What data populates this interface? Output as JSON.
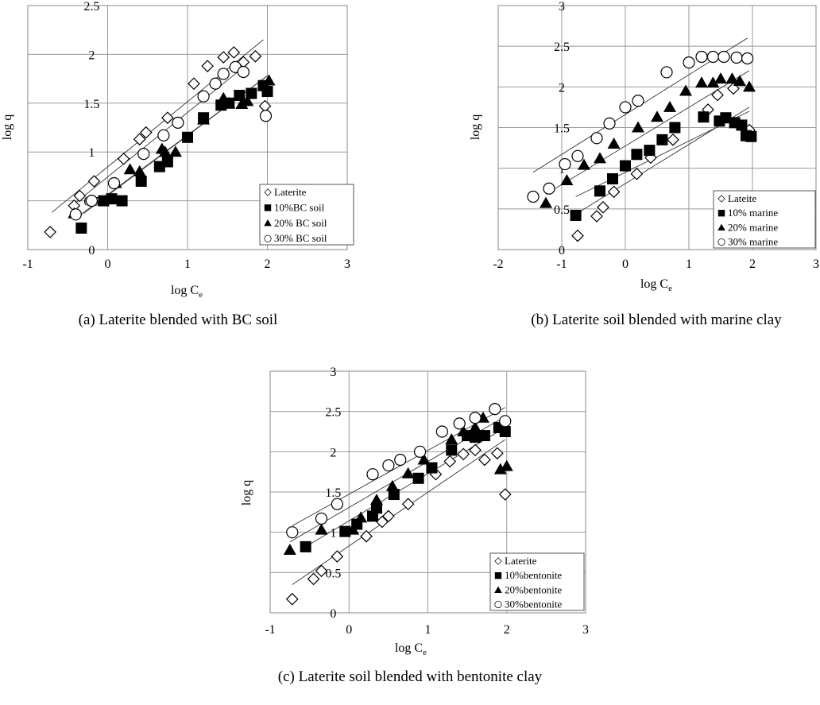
{
  "chart_data": [
    {
      "type": "scatter",
      "caption": "(a) Laterite blended with BC soil",
      "xlabel_main": "log C",
      "xlabel_sub": "e",
      "ylabel": "log q",
      "xlim": [
        -1,
        3
      ],
      "ylim": [
        0,
        2.5
      ],
      "xticks": [
        "-1",
        "0",
        "1",
        "2",
        "3"
      ],
      "yticks": [
        "0",
        "0.5",
        "1",
        "1.5",
        "2",
        "2.5"
      ],
      "ytick_values": [
        0,
        0.5,
        1,
        1.5,
        2,
        2.5
      ],
      "xgrid": [
        0,
        1,
        2
      ],
      "ygrid": [
        0.5,
        1,
        1.5,
        2
      ],
      "legend_position": "bottom-right",
      "series": [
        {
          "name": "Laterite",
          "marker": "diamond-open",
          "x": [
            -0.72,
            -0.42,
            -0.35,
            -0.17,
            0.2,
            0.4,
            0.48,
            0.75,
            1.08,
            1.25,
            1.45,
            1.58,
            1.7,
            1.85,
            1.97
          ],
          "y": [
            0.18,
            0.45,
            0.55,
            0.7,
            0.93,
            1.13,
            1.2,
            1.35,
            1.7,
            1.88,
            1.97,
            2.02,
            1.92,
            1.98,
            1.47
          ],
          "fit": [
            [
              -0.7,
              0.38
            ],
            [
              1.95,
              2.15
            ]
          ]
        },
        {
          "name": "10%BC soil",
          "marker": "square-filled",
          "x": [
            -0.33,
            -0.05,
            0.05,
            0.18,
            0.42,
            0.65,
            0.75,
            1.0,
            1.2,
            1.42,
            1.52,
            1.65,
            1.8,
            1.95,
            2.0
          ],
          "y": [
            0.22,
            0.5,
            0.52,
            0.5,
            0.7,
            0.85,
            0.9,
            1.15,
            1.35,
            1.48,
            1.5,
            1.58,
            1.6,
            1.68,
            1.62
          ],
          "fit": [
            [
              -0.3,
              0.37
            ],
            [
              2.0,
              1.78
            ]
          ]
        },
        {
          "name": "20% BC soil",
          "marker": "triangle-filled",
          "x": [
            -0.42,
            0.1,
            0.28,
            0.4,
            0.68,
            0.72,
            0.85,
            1.2,
            1.45,
            1.52,
            1.68,
            1.75,
            2.02
          ],
          "y": [
            0.37,
            0.68,
            0.82,
            0.8,
            1.03,
            1.0,
            1.0,
            1.33,
            1.55,
            1.5,
            1.49,
            1.52,
            1.73
          ],
          "fit": [
            [
              -0.4,
              0.32
            ],
            [
              2.0,
              1.78
            ]
          ]
        },
        {
          "name": "30% BC soil",
          "marker": "circle-open",
          "x": [
            -0.4,
            -0.2,
            0.08,
            0.45,
            0.7,
            0.88,
            1.2,
            1.35,
            1.45,
            1.6,
            1.7,
            1.98
          ],
          "y": [
            0.36,
            0.5,
            0.68,
            0.98,
            1.17,
            1.3,
            1.57,
            1.7,
            1.8,
            1.87,
            1.82,
            1.37
          ],
          "fit": [
            [
              -0.4,
              0.48
            ],
            [
              1.75,
              1.9
            ]
          ]
        }
      ]
    },
    {
      "type": "scatter",
      "caption": "(b) Laterite soil blended with marine clay",
      "xlabel_main": "log C",
      "xlabel_sub": "e",
      "ylabel": "log q",
      "xlim": [
        -2,
        3
      ],
      "ylim": [
        0,
        3
      ],
      "xticks": [
        "-2",
        "-1",
        "0",
        "1",
        "2",
        "3"
      ],
      "yticks": [
        "0",
        "0.5",
        "1",
        "1.5",
        "2",
        "2.5",
        "3"
      ],
      "ytick_values": [
        0,
        0.5,
        1,
        1.5,
        2,
        2.5,
        3
      ],
      "xgrid": [
        -1,
        0,
        1,
        2
      ],
      "ygrid": [
        0.5,
        1,
        1.5,
        2,
        2.5
      ],
      "legend_position": "bottom-right",
      "series": [
        {
          "name": "Lateite",
          "marker": "diamond-open",
          "x": [
            -0.75,
            -0.45,
            -0.35,
            -0.18,
            0.18,
            0.4,
            0.75,
            1.3,
            1.45,
            1.7,
            1.95
          ],
          "y": [
            0.17,
            0.41,
            0.52,
            0.71,
            0.93,
            1.13,
            1.35,
            1.72,
            1.9,
            1.98,
            1.47
          ],
          "fit": [
            [
              -0.75,
              0.45
            ],
            [
              1.95,
              1.75
            ]
          ]
        },
        {
          "name": "10% marine",
          "marker": "square-filled",
          "x": [
            -0.78,
            -0.4,
            -0.2,
            0.0,
            0.18,
            0.38,
            0.58,
            0.78,
            1.23,
            1.48,
            1.58,
            1.72,
            1.83,
            1.9,
            1.98
          ],
          "y": [
            0.42,
            0.72,
            0.87,
            1.03,
            1.17,
            1.22,
            1.35,
            1.5,
            1.63,
            1.58,
            1.62,
            1.56,
            1.53,
            1.4,
            1.39
          ],
          "fit": [
            [
              -0.78,
              0.65
            ],
            [
              1.95,
              1.7
            ]
          ]
        },
        {
          "name": "20% marine",
          "marker": "triangle-filled",
          "x": [
            -1.25,
            -0.92,
            -0.65,
            -0.4,
            -0.18,
            0.2,
            0.5,
            0.7,
            0.95,
            1.2,
            1.38,
            1.5,
            1.68,
            1.8,
            1.95
          ],
          "y": [
            0.57,
            0.85,
            1.04,
            1.12,
            1.3,
            1.5,
            1.63,
            1.75,
            1.95,
            2.05,
            2.05,
            2.1,
            2.1,
            2.07,
            2.0
          ],
          "fit": [
            [
              -1.25,
              0.68
            ],
            [
              1.95,
              2.2
            ]
          ]
        },
        {
          "name": "30% marine",
          "marker": "circle-open",
          "x": [
            -1.45,
            -1.2,
            -0.95,
            -0.75,
            -0.45,
            -0.25,
            0.0,
            0.2,
            0.65,
            1.0,
            1.2,
            1.38,
            1.55,
            1.75,
            1.92
          ],
          "y": [
            0.65,
            0.75,
            1.05,
            1.15,
            1.37,
            1.55,
            1.75,
            1.83,
            2.18,
            2.3,
            2.37,
            2.37,
            2.37,
            2.36,
            2.35
          ],
          "fit": [
            [
              -1.45,
              0.95
            ],
            [
              1.92,
              2.6
            ]
          ]
        }
      ]
    },
    {
      "type": "scatter",
      "caption": "(c) Laterite soil blended with bentonite clay",
      "xlabel_main": "log C",
      "xlabel_sub": "e",
      "ylabel": "log q",
      "xlim": [
        -1,
        3
      ],
      "ylim": [
        0,
        3
      ],
      "xticks": [
        "-1",
        "0",
        "1",
        "2",
        "3"
      ],
      "yticks": [
        "0",
        "0.5",
        "1",
        "1.5",
        "2",
        "2.5",
        "3"
      ],
      "ytick_values": [
        0,
        0.5,
        1,
        1.5,
        2,
        2.5,
        3
      ],
      "xgrid": [
        0,
        1,
        2
      ],
      "ygrid": [
        0.5,
        1,
        1.5,
        2,
        2.5
      ],
      "legend_position": "bottom-right",
      "series": [
        {
          "name": "Laterite",
          "marker": "diamond-open",
          "x": [
            -0.72,
            -0.45,
            -0.35,
            -0.15,
            0.22,
            0.42,
            0.5,
            0.75,
            1.1,
            1.28,
            1.45,
            1.6,
            1.72,
            1.88,
            1.98
          ],
          "y": [
            0.17,
            0.42,
            0.52,
            0.7,
            0.95,
            1.13,
            1.2,
            1.35,
            1.72,
            1.88,
            1.97,
            2.02,
            1.9,
            1.98,
            1.47
          ],
          "fit": [
            [
              -0.72,
              0.35
            ],
            [
              1.98,
              2.15
            ]
          ]
        },
        {
          "name": "10%bentonite",
          "marker": "square-filled",
          "x": [
            -0.55,
            -0.05,
            0.1,
            0.3,
            0.35,
            0.57,
            0.88,
            1.05,
            1.3,
            1.5,
            1.6,
            1.72,
            1.9,
            1.98
          ],
          "y": [
            0.82,
            1.01,
            1.1,
            1.2,
            1.3,
            1.47,
            1.67,
            1.8,
            2.02,
            2.2,
            2.18,
            2.2,
            2.3,
            2.25
          ],
          "fit": [
            [
              -0.55,
              0.82
            ],
            [
              1.98,
              2.3
            ]
          ]
        },
        {
          "name": "20%bentonite",
          "marker": "triangle-filled",
          "x": [
            -0.75,
            -0.35,
            0.05,
            0.15,
            0.35,
            0.55,
            0.75,
            0.95,
            1.3,
            1.45,
            1.6,
            1.7,
            1.92,
            2.0
          ],
          "y": [
            0.78,
            1.03,
            1.03,
            1.18,
            1.4,
            1.57,
            1.73,
            1.9,
            2.15,
            2.25,
            2.3,
            2.42,
            1.78,
            1.82
          ],
          "fit": [
            [
              -0.75,
              0.88
            ],
            [
              1.95,
              2.42
            ]
          ]
        },
        {
          "name": "30%bentonite",
          "marker": "circle-open",
          "x": [
            -0.72,
            -0.35,
            -0.15,
            0.3,
            0.5,
            0.65,
            0.9,
            1.18,
            1.4,
            1.6,
            1.85,
            1.98
          ],
          "y": [
            1.0,
            1.17,
            1.35,
            1.72,
            1.83,
            1.9,
            2.0,
            2.25,
            2.35,
            2.42,
            2.53,
            2.38
          ],
          "fit": [
            [
              -0.72,
              1.08
            ],
            [
              1.98,
              2.55
            ]
          ]
        }
      ]
    }
  ]
}
